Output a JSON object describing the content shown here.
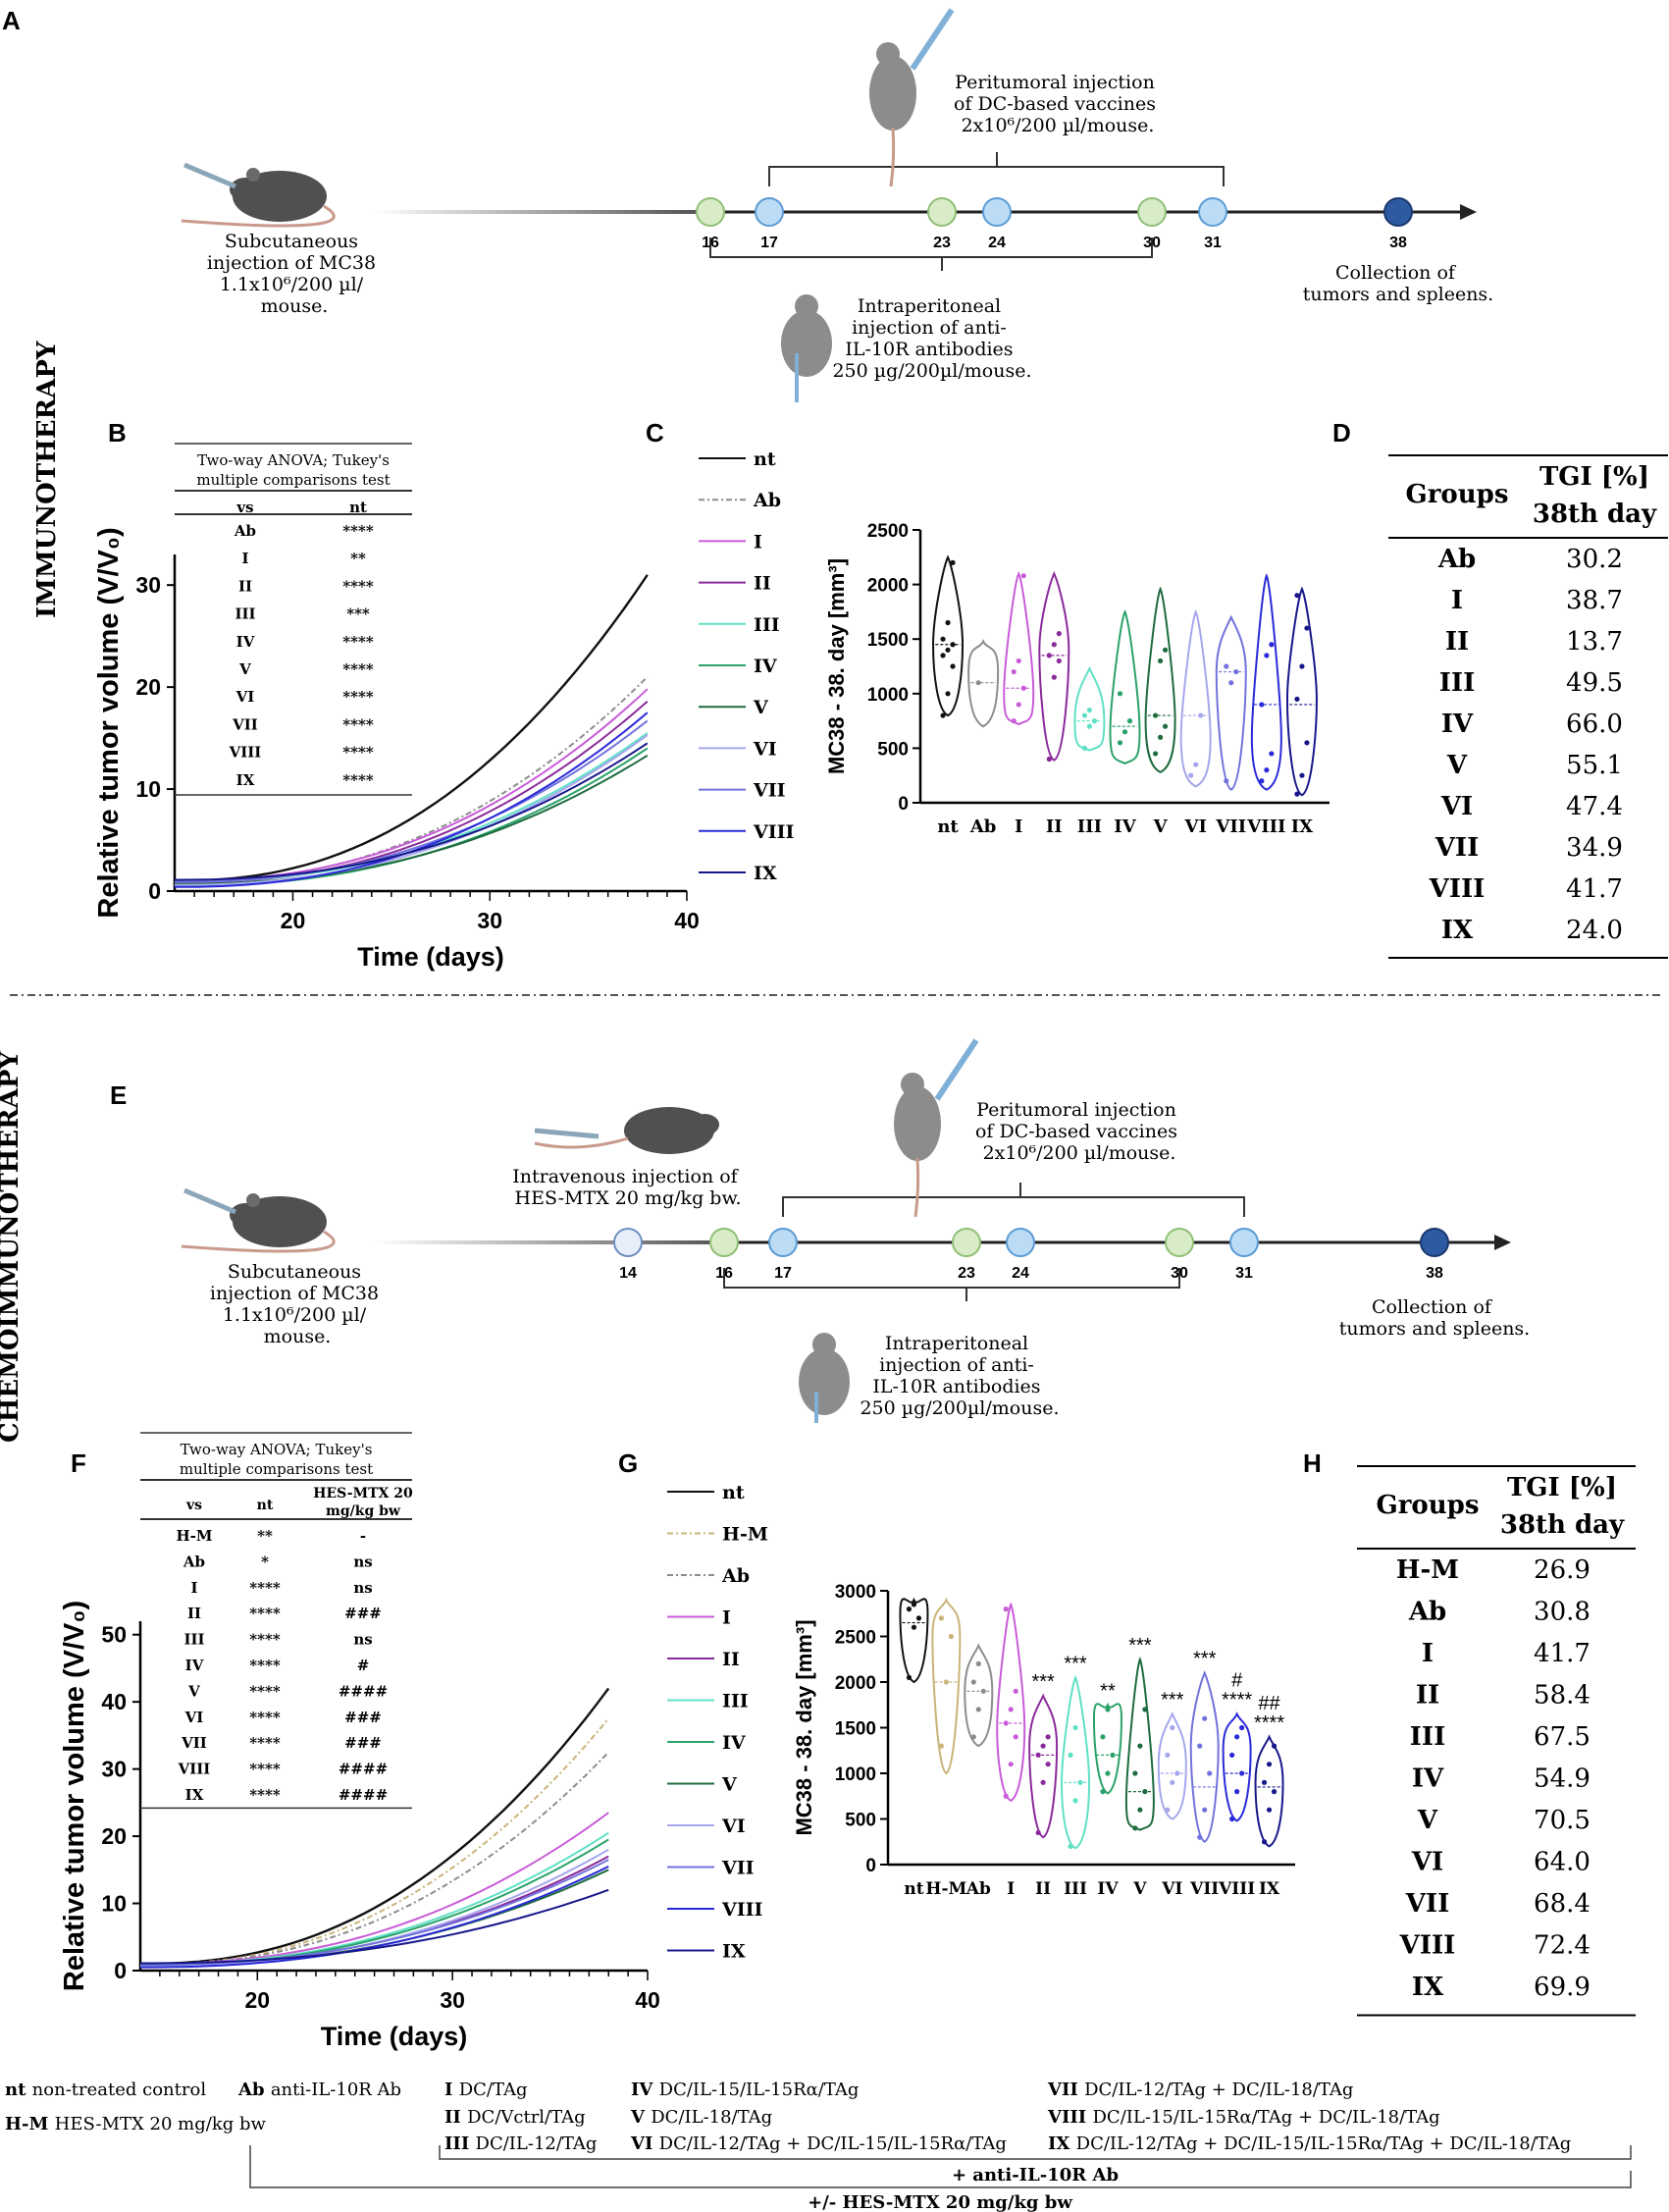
{
  "panel_letters": {
    "A": "A",
    "B": "B",
    "C": "C",
    "D": "D",
    "E": "E",
    "F": "F",
    "G": "G",
    "H": "H"
  },
  "side_titles": {
    "top": "IMMUNOTHERAPY",
    "bottom": "CHEMOIMMUNOTHERAPY"
  },
  "schemeA": {
    "sc_text": [
      "Subcutaneous",
      "injection of MC38",
      "1.1x10⁶/200 µl/",
      "mouse."
    ],
    "peri_text": [
      "Peritumoral injection",
      "of DC-based vaccines",
      "2x10⁶/200 µl/mouse."
    ],
    "ip_text": [
      "Intraperitoneal",
      "injection of anti-",
      "IL-10R antibodies",
      "250 µg/200µl/mouse."
    ],
    "collect_text": [
      "Collection of",
      "tumors and spleens."
    ],
    "days": [
      "16",
      "17",
      "23",
      "24",
      "30",
      "31",
      "38"
    ]
  },
  "schemeE": {
    "sc_text": [
      "Subcutaneous",
      "injection of MC38",
      "1.1x10⁶/200 µl/",
      "mouse."
    ],
    "iv_text": [
      "Intravenous injection of",
      "HES-MTX 20 mg/kg bw."
    ],
    "peri_text": [
      "Peritumoral injection",
      "of DC-based vaccines",
      "2x10⁶/200 µl/mouse."
    ],
    "ip_text": [
      "Intraperitoneal",
      "injection of anti-",
      "IL-10R antibodies",
      "250 µg/200µl/mouse."
    ],
    "collect_text": [
      "Collection of",
      "tumors and spleens."
    ],
    "days": [
      "14",
      "16",
      "17",
      "23",
      "24",
      "30",
      "31",
      "38"
    ]
  },
  "colors": {
    "green": "#d8ecc8",
    "green_stroke": "#8fbf75",
    "blue": "#bcdcf5",
    "blue_stroke": "#5b9bd5",
    "dark_blue": "#2d5aa0",
    "iv_fill": "#e6eefa"
  },
  "series_colors": {
    "nt": "#111111",
    "H-M": "#c9b47a",
    "Ab": "#8c8c8c",
    "I": "#c85cd8",
    "II": "#8a2a9a",
    "III": "#5fe0c4",
    "IV": "#2aa26a",
    "V": "#1d6b3e",
    "VI": "#a6a6ee",
    "VII": "#7272dc",
    "VIII": "#2a2ad8",
    "IX": "#17178a"
  },
  "series_dash": {
    "H-M": "6,3,2,3",
    "Ab": "6,3,2,3"
  },
  "chart_data": [
    {
      "id": "B",
      "type": "line",
      "title": "",
      "xlabel": "Time (days)",
      "ylabel": "Relative tumor volume (V/V₀)",
      "xlim": [
        14,
        40
      ],
      "ylim": [
        0,
        33
      ],
      "xticks": [
        20,
        30,
        40
      ],
      "yticks": [
        0,
        10,
        20,
        30
      ],
      "x": [
        14,
        38
      ],
      "series": [
        {
          "name": "nt",
          "start": 1.0,
          "end": 31.0
        },
        {
          "name": "Ab",
          "start": 0.9,
          "end": 21.0
        },
        {
          "name": "I",
          "start": 1.0,
          "end": 19.8
        },
        {
          "name": "II",
          "start": 0.8,
          "end": 18.6
        },
        {
          "name": "III",
          "start": 0.9,
          "end": 15.5
        },
        {
          "name": "IV",
          "start": 0.5,
          "end": 14.0
        },
        {
          "name": "V",
          "start": 0.7,
          "end": 13.3
        },
        {
          "name": "VI",
          "start": 0.6,
          "end": 15.3
        },
        {
          "name": "VII",
          "start": 0.9,
          "end": 16.7
        },
        {
          "name": "VIII",
          "start": 0.4,
          "end": 17.5
        },
        {
          "name": "IX",
          "start": 1.1,
          "end": 14.5
        }
      ],
      "stats_table": {
        "title": [
          "Two-way ANOVA; Tukey's",
          "multiple comparisons test"
        ],
        "headers": [
          "vs",
          "nt"
        ],
        "rows": [
          [
            "Ab",
            "****"
          ],
          [
            "I",
            "**"
          ],
          [
            "II",
            "****"
          ],
          [
            "III",
            "***"
          ],
          [
            "IV",
            "****"
          ],
          [
            "V",
            "****"
          ],
          [
            "VI",
            "****"
          ],
          [
            "VII",
            "****"
          ],
          [
            "VIII",
            "****"
          ],
          [
            "IX",
            "****"
          ]
        ]
      }
    },
    {
      "id": "C",
      "type": "violin",
      "ylabel": "MC38 - 38. day [mm³]",
      "ylim": [
        0,
        2500
      ],
      "yticks": [
        0,
        500,
        1000,
        1500,
        2000,
        2500
      ],
      "categories": [
        "nt",
        "Ab",
        "I",
        "II",
        "III",
        "IV",
        "V",
        "VI",
        "VII",
        "VIII",
        "IX"
      ],
      "groups": [
        {
          "name": "nt",
          "min": 800,
          "max": 2250,
          "median": 1450,
          "bulge": 1450,
          "points": [
            800,
            1000,
            1250,
            1350,
            1400,
            1450,
            1500,
            1650,
            2200
          ]
        },
        {
          "name": "Ab",
          "min": 700,
          "max": 1480,
          "median": 1100,
          "bulge": 1200,
          "points": [
            1100
          ]
        },
        {
          "name": "I",
          "min": 720,
          "max": 2100,
          "median": 1050,
          "bulge": 1000,
          "points": [
            750,
            900,
            1050,
            1200,
            1300,
            2080
          ]
        },
        {
          "name": "II",
          "min": 390,
          "max": 2100,
          "median": 1350,
          "bulge": 1400,
          "points": [
            400,
            1150,
            1300,
            1350,
            1450,
            1550
          ]
        },
        {
          "name": "III",
          "min": 480,
          "max": 1230,
          "median": 750,
          "bulge": 750,
          "points": [
            500,
            700,
            750,
            800,
            850
          ]
        },
        {
          "name": "IV",
          "min": 360,
          "max": 1750,
          "median": 700,
          "bulge": 650,
          "points": [
            550,
            650,
            750,
            1000
          ]
        },
        {
          "name": "V",
          "min": 280,
          "max": 1960,
          "median": 800,
          "bulge": 750,
          "points": [
            450,
            600,
            700,
            800,
            1300,
            1400
          ]
        },
        {
          "name": "VI",
          "min": 150,
          "max": 1750,
          "median": 800,
          "bulge": 600,
          "points": [
            250,
            350,
            800
          ]
        },
        {
          "name": "VII",
          "min": 120,
          "max": 1700,
          "median": 1200,
          "bulge": 1200,
          "points": [
            200,
            1100,
            1200,
            1250
          ]
        },
        {
          "name": "VIII",
          "min": 120,
          "max": 2080,
          "median": 900,
          "bulge": 600,
          "points": [
            200,
            300,
            450,
            900,
            1350,
            1450
          ]
        },
        {
          "name": "IX",
          "min": 70,
          "max": 1960,
          "median": 900,
          "bulge": 950,
          "points": [
            80,
            250,
            550,
            950,
            1250,
            1600,
            1900
          ]
        }
      ]
    },
    {
      "id": "F",
      "type": "line",
      "title": "",
      "xlabel": "Time (days)",
      "ylabel": "Relative tumor volume (V/V₀)",
      "xlim": [
        14,
        40
      ],
      "ylim": [
        0,
        52
      ],
      "xticks": [
        20,
        30,
        40
      ],
      "yticks": [
        0,
        10,
        20,
        30,
        40,
        50
      ],
      "x": [
        14,
        38
      ],
      "series": [
        {
          "name": "nt",
          "start": 1.0,
          "end": 42.0
        },
        {
          "name": "H-M",
          "start": 0.9,
          "end": 37.5
        },
        {
          "name": "Ab",
          "start": 0.9,
          "end": 32.5
        },
        {
          "name": "I",
          "start": 1.0,
          "end": 23.5
        },
        {
          "name": "II",
          "start": 0.8,
          "end": 17.0
        },
        {
          "name": "III",
          "start": 0.9,
          "end": 20.5
        },
        {
          "name": "IV",
          "start": 0.8,
          "end": 19.5
        },
        {
          "name": "V",
          "start": 0.7,
          "end": 15.0
        },
        {
          "name": "VI",
          "start": 0.6,
          "end": 18.0
        },
        {
          "name": "VII",
          "start": 0.9,
          "end": 16.5
        },
        {
          "name": "VIII",
          "start": 0.5,
          "end": 15.5
        },
        {
          "name": "IX",
          "start": 1.1,
          "end": 12.0
        }
      ],
      "stats_table": {
        "title": [
          "Two-way ANOVA; Tukey's",
          "multiple comparisons test"
        ],
        "headers": [
          "vs",
          "nt",
          "HES-MTX 20",
          "mg/kg bw"
        ],
        "rows": [
          [
            "H-M",
            "**",
            "-"
          ],
          [
            "Ab",
            "*",
            "ns"
          ],
          [
            "I",
            "****",
            "ns"
          ],
          [
            "II",
            "****",
            "###"
          ],
          [
            "III",
            "****",
            "ns"
          ],
          [
            "IV",
            "****",
            "#"
          ],
          [
            "V",
            "****",
            "####"
          ],
          [
            "VI",
            "****",
            "###"
          ],
          [
            "VII",
            "****",
            "###"
          ],
          [
            "VIII",
            "****",
            "####"
          ],
          [
            "IX",
            "****",
            "####"
          ]
        ]
      }
    },
    {
      "id": "G",
      "type": "violin",
      "ylabel": "MC38 - 38. day [mm³]",
      "ylim": [
        0,
        3000
      ],
      "yticks": [
        0,
        500,
        1000,
        1500,
        2000,
        2500,
        3000
      ],
      "categories": [
        "nt",
        "H-M",
        "Ab",
        "I",
        "II",
        "III",
        "IV",
        "V",
        "VI",
        "VII",
        "VIII",
        "IX"
      ],
      "groups": [
        {
          "name": "nt",
          "min": 2000,
          "max": 2900,
          "median": 2650,
          "bulge": 2750,
          "points": [
            2050,
            2600,
            2700,
            2800,
            2850
          ],
          "labels": []
        },
        {
          "name": "H-M",
          "min": 1000,
          "max": 2900,
          "median": 2000,
          "bulge": 2500,
          "points": [
            1300,
            2000,
            2500,
            2700
          ],
          "labels": []
        },
        {
          "name": "Ab",
          "min": 1300,
          "max": 2400,
          "median": 1900,
          "bulge": 1900,
          "points": [
            1400,
            1700,
            1900,
            2000,
            2200
          ],
          "labels": []
        },
        {
          "name": "I",
          "min": 700,
          "max": 2850,
          "median": 1550,
          "bulge": 1500,
          "points": [
            750,
            1100,
            1400,
            1550,
            1700,
            1900,
            2800
          ],
          "labels": []
        },
        {
          "name": "II",
          "min": 300,
          "max": 1850,
          "median": 1200,
          "bulge": 1300,
          "points": [
            350,
            900,
            1100,
            1200,
            1300,
            1400
          ],
          "labels": [
            "***"
          ]
        },
        {
          "name": "III",
          "min": 180,
          "max": 2050,
          "median": 900,
          "bulge": 900,
          "points": [
            200,
            700,
            900,
            1200,
            1500
          ],
          "labels": [
            "***"
          ]
        },
        {
          "name": "IV",
          "min": 780,
          "max": 1750,
          "median": 1200,
          "bulge": 1600,
          "points": [
            800,
            1000,
            1200,
            1400,
            1700
          ],
          "labels": [
            "**"
          ]
        },
        {
          "name": "V",
          "min": 380,
          "max": 2250,
          "median": 800,
          "bulge": 700,
          "points": [
            400,
            600,
            800,
            1000,
            1300,
            1700
          ],
          "labels": [
            "***"
          ]
        },
        {
          "name": "VI",
          "min": 500,
          "max": 1650,
          "median": 1000,
          "bulge": 1100,
          "points": [
            600,
            900,
            1000,
            1200,
            1500
          ],
          "labels": [
            "***"
          ]
        },
        {
          "name": "VII",
          "min": 250,
          "max": 2100,
          "median": 850,
          "bulge": 1300,
          "points": [
            300,
            600,
            1000,
            1300,
            1600
          ],
          "labels": [
            "***"
          ]
        },
        {
          "name": "VIII",
          "min": 480,
          "max": 1650,
          "median": 1000,
          "bulge": 1250,
          "points": [
            500,
            800,
            1000,
            1200,
            1400,
            1500
          ],
          "labels": [
            "#",
            "****"
          ]
        },
        {
          "name": "IX",
          "min": 200,
          "max": 1400,
          "median": 850,
          "bulge": 900,
          "points": [
            250,
            600,
            800,
            900,
            1100,
            1300
          ],
          "labels": [
            "##",
            "****"
          ]
        }
      ]
    },
    {
      "id": "D",
      "type": "table",
      "headers": [
        "Groups",
        "TGI [%]",
        "38th day"
      ],
      "rows": [
        [
          "Ab",
          "30.2"
        ],
        [
          "I",
          "38.7"
        ],
        [
          "II",
          "13.7"
        ],
        [
          "III",
          "49.5"
        ],
        [
          "IV",
          "66.0"
        ],
        [
          "V",
          "55.1"
        ],
        [
          "VI",
          "47.4"
        ],
        [
          "VII",
          "34.9"
        ],
        [
          "VIII",
          "41.7"
        ],
        [
          "IX",
          "24.0"
        ]
      ]
    },
    {
      "id": "H",
      "type": "table",
      "headers": [
        "Groups",
        "TGI [%]",
        "38th day"
      ],
      "rows": [
        [
          "H-M",
          "26.9"
        ],
        [
          "Ab",
          "30.8"
        ],
        [
          "I",
          "41.7"
        ],
        [
          "II",
          "58.4"
        ],
        [
          "III",
          "67.5"
        ],
        [
          "IV",
          "54.9"
        ],
        [
          "V",
          "70.5"
        ],
        [
          "VI",
          "64.0"
        ],
        [
          "VII",
          "68.4"
        ],
        [
          "VIII",
          "72.4"
        ],
        [
          "IX",
          "69.9"
        ]
      ]
    }
  ],
  "legend_top": [
    "nt",
    "Ab",
    "I",
    "II",
    "III",
    "IV",
    "V",
    "VI",
    "VII",
    "VIII",
    "IX"
  ],
  "legend_bottom": [
    "nt",
    "H-M",
    "Ab",
    "I",
    "II",
    "III",
    "IV",
    "V",
    "VI",
    "VII",
    "VIII",
    "IX"
  ],
  "footer": {
    "items": [
      {
        "k": "nt",
        "v": "non-treated control"
      },
      {
        "k": "Ab",
        "v": "anti-IL-10R Ab"
      },
      {
        "k": "H-M",
        "v": "HES-MTX 20 mg/kg bw"
      },
      {
        "k": "I",
        "v": "DC/TAg"
      },
      {
        "k": "II",
        "v": "DC/Vctrl/TAg"
      },
      {
        "k": "III",
        "v": "DC/IL-12/TAg"
      },
      {
        "k": "IV",
        "v": "DC/IL-15/IL-15Rα/TAg"
      },
      {
        "k": "V",
        "v": "DC/IL-18/TAg"
      },
      {
        "k": "VI",
        "v": "DC/IL-12/TAg + DC/IL-15/IL-15Rα/TAg"
      },
      {
        "k": "VII",
        "v": "DC/IL-12/TAg + DC/IL-18/TAg"
      },
      {
        "k": "VIII",
        "v": "DC/IL-15/IL-15Rα/TAg + DC/IL-18/TAg"
      },
      {
        "k": "IX",
        "v": "DC/IL-12/TAg + DC/IL-15/IL-15Rα/TAg + DC/IL-18/TAg"
      }
    ],
    "bracket1": "+ anti-IL-10R Ab",
    "bracket2": "+/- HES-MTX 20 mg/kg bw"
  }
}
